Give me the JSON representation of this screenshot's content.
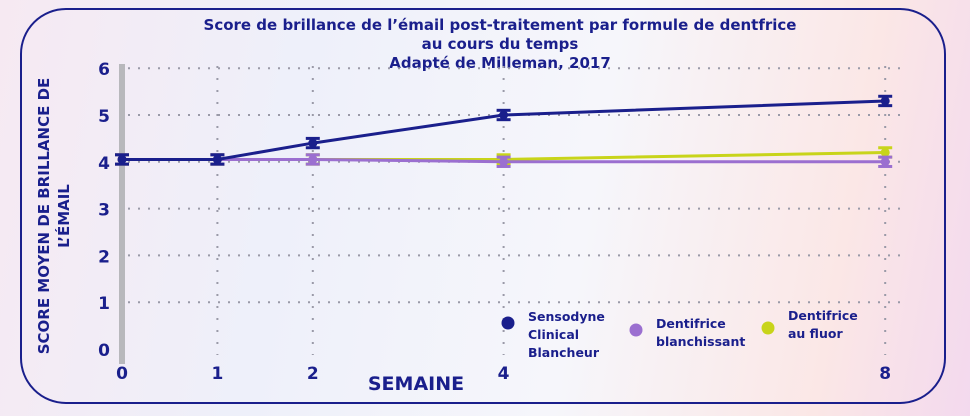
{
  "chart_data": {
    "type": "line",
    "title": [
      "Score de brillance de l’émail post-traitement par formule de dentfrice",
      "au cours du temps",
      "Adapté de Milleman, 2017"
    ],
    "xlabel": "SEMAINE",
    "ylabel": [
      "SCORE MOYEN DE BRILLANCE DE",
      "L’ÉMAIL"
    ],
    "x": [
      0,
      1,
      2,
      4,
      8
    ],
    "x_ticks": [
      "0",
      "1",
      "2",
      "4",
      "8"
    ],
    "y_ticks": [
      "0",
      "1",
      "2",
      "3",
      "4",
      "5",
      "6"
    ],
    "ylim": [
      0,
      6
    ],
    "grid": true,
    "legend_position": "bottom-right",
    "series": [
      {
        "name": "Sensodyne Clinical Blancheur",
        "legend_lines": [
          "Sensodyne",
          "Clinical",
          "Blancheur"
        ],
        "color": "#1a1f8c",
        "values": [
          4.05,
          4.05,
          4.4,
          5.0,
          5.3
        ],
        "error": 0.1
      },
      {
        "name": "Dentifrice blanchissant",
        "legend_lines": [
          "Dentifrice",
          "blanchissant"
        ],
        "color": "#9b6fd0",
        "values": [
          4.05,
          4.05,
          4.05,
          4.0,
          4.0
        ],
        "error": 0.1
      },
      {
        "name": "Dentifrice au fluor",
        "legend_lines": [
          "Dentifrice",
          "au fluor"
        ],
        "color": "#c8d41a",
        "values": [
          4.05,
          4.05,
          4.05,
          4.05,
          4.2
        ],
        "error": 0.1
      }
    ]
  }
}
